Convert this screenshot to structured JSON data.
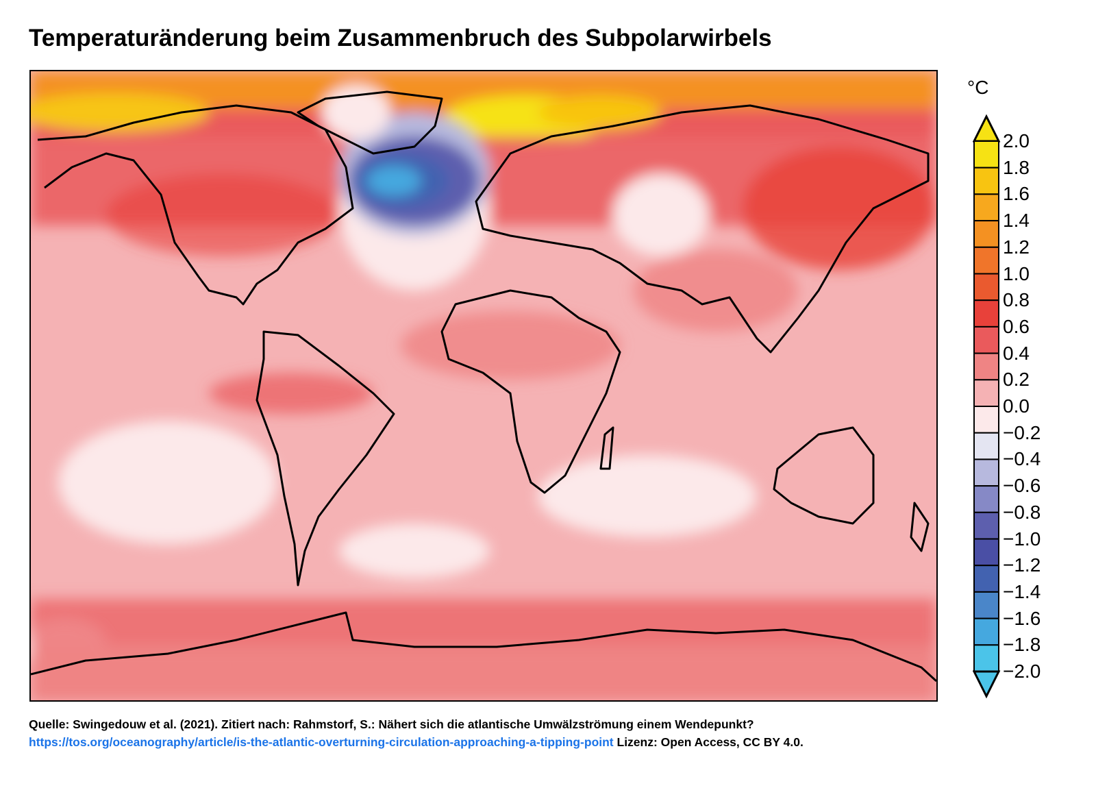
{
  "title": "Temperaturänderung beim Zusammenbruch des Subpolarwirbels",
  "map": {
    "description_colors": {
      "land_outline": "#000000"
    }
  },
  "legend": {
    "unit": "°C",
    "ticks": [
      "2.0",
      "1.8",
      "1.6",
      "1.4",
      "1.2",
      "1.0",
      "0.8",
      "0.6",
      "0.4",
      "0.2",
      "0.0",
      "−0.2",
      "−0.4",
      "−0.6",
      "−0.8",
      "−1.0",
      "−1.2",
      "−1.4",
      "−1.6",
      "−1.8",
      "−2.0"
    ],
    "bands": [
      "#f6e214",
      "#f8c411",
      "#f7a81e",
      "#f49122",
      "#f0752a",
      "#ea5a2f",
      "#e8413a",
      "#ea5a5c",
      "#ef8484",
      "#f5b2b4",
      "#fce9ea",
      "#e4e5f2",
      "#b7b9de",
      "#8689c6",
      "#5d5fae",
      "#4a4fa5",
      "#4262b0",
      "#4a86c9",
      "#45a8df",
      "#4bc4e9"
    ],
    "top_arrow_color": "#f6e214",
    "bottom_arrow_color": "#4bc4e9"
  },
  "source": {
    "line1": "Quelle: Swingedouw et al. (2021). Zitiert nach: Rahmstorf, S.: Nähert sich die atlantische Umwälzströmung einem Wendepunkt?",
    "link": "https://tos.org/oceanography/article/is-the-atlantic-overturning-circulation-approaching-a-tipping-point",
    "license": " Lizenz: Open Access, CC BY 4.0."
  }
}
